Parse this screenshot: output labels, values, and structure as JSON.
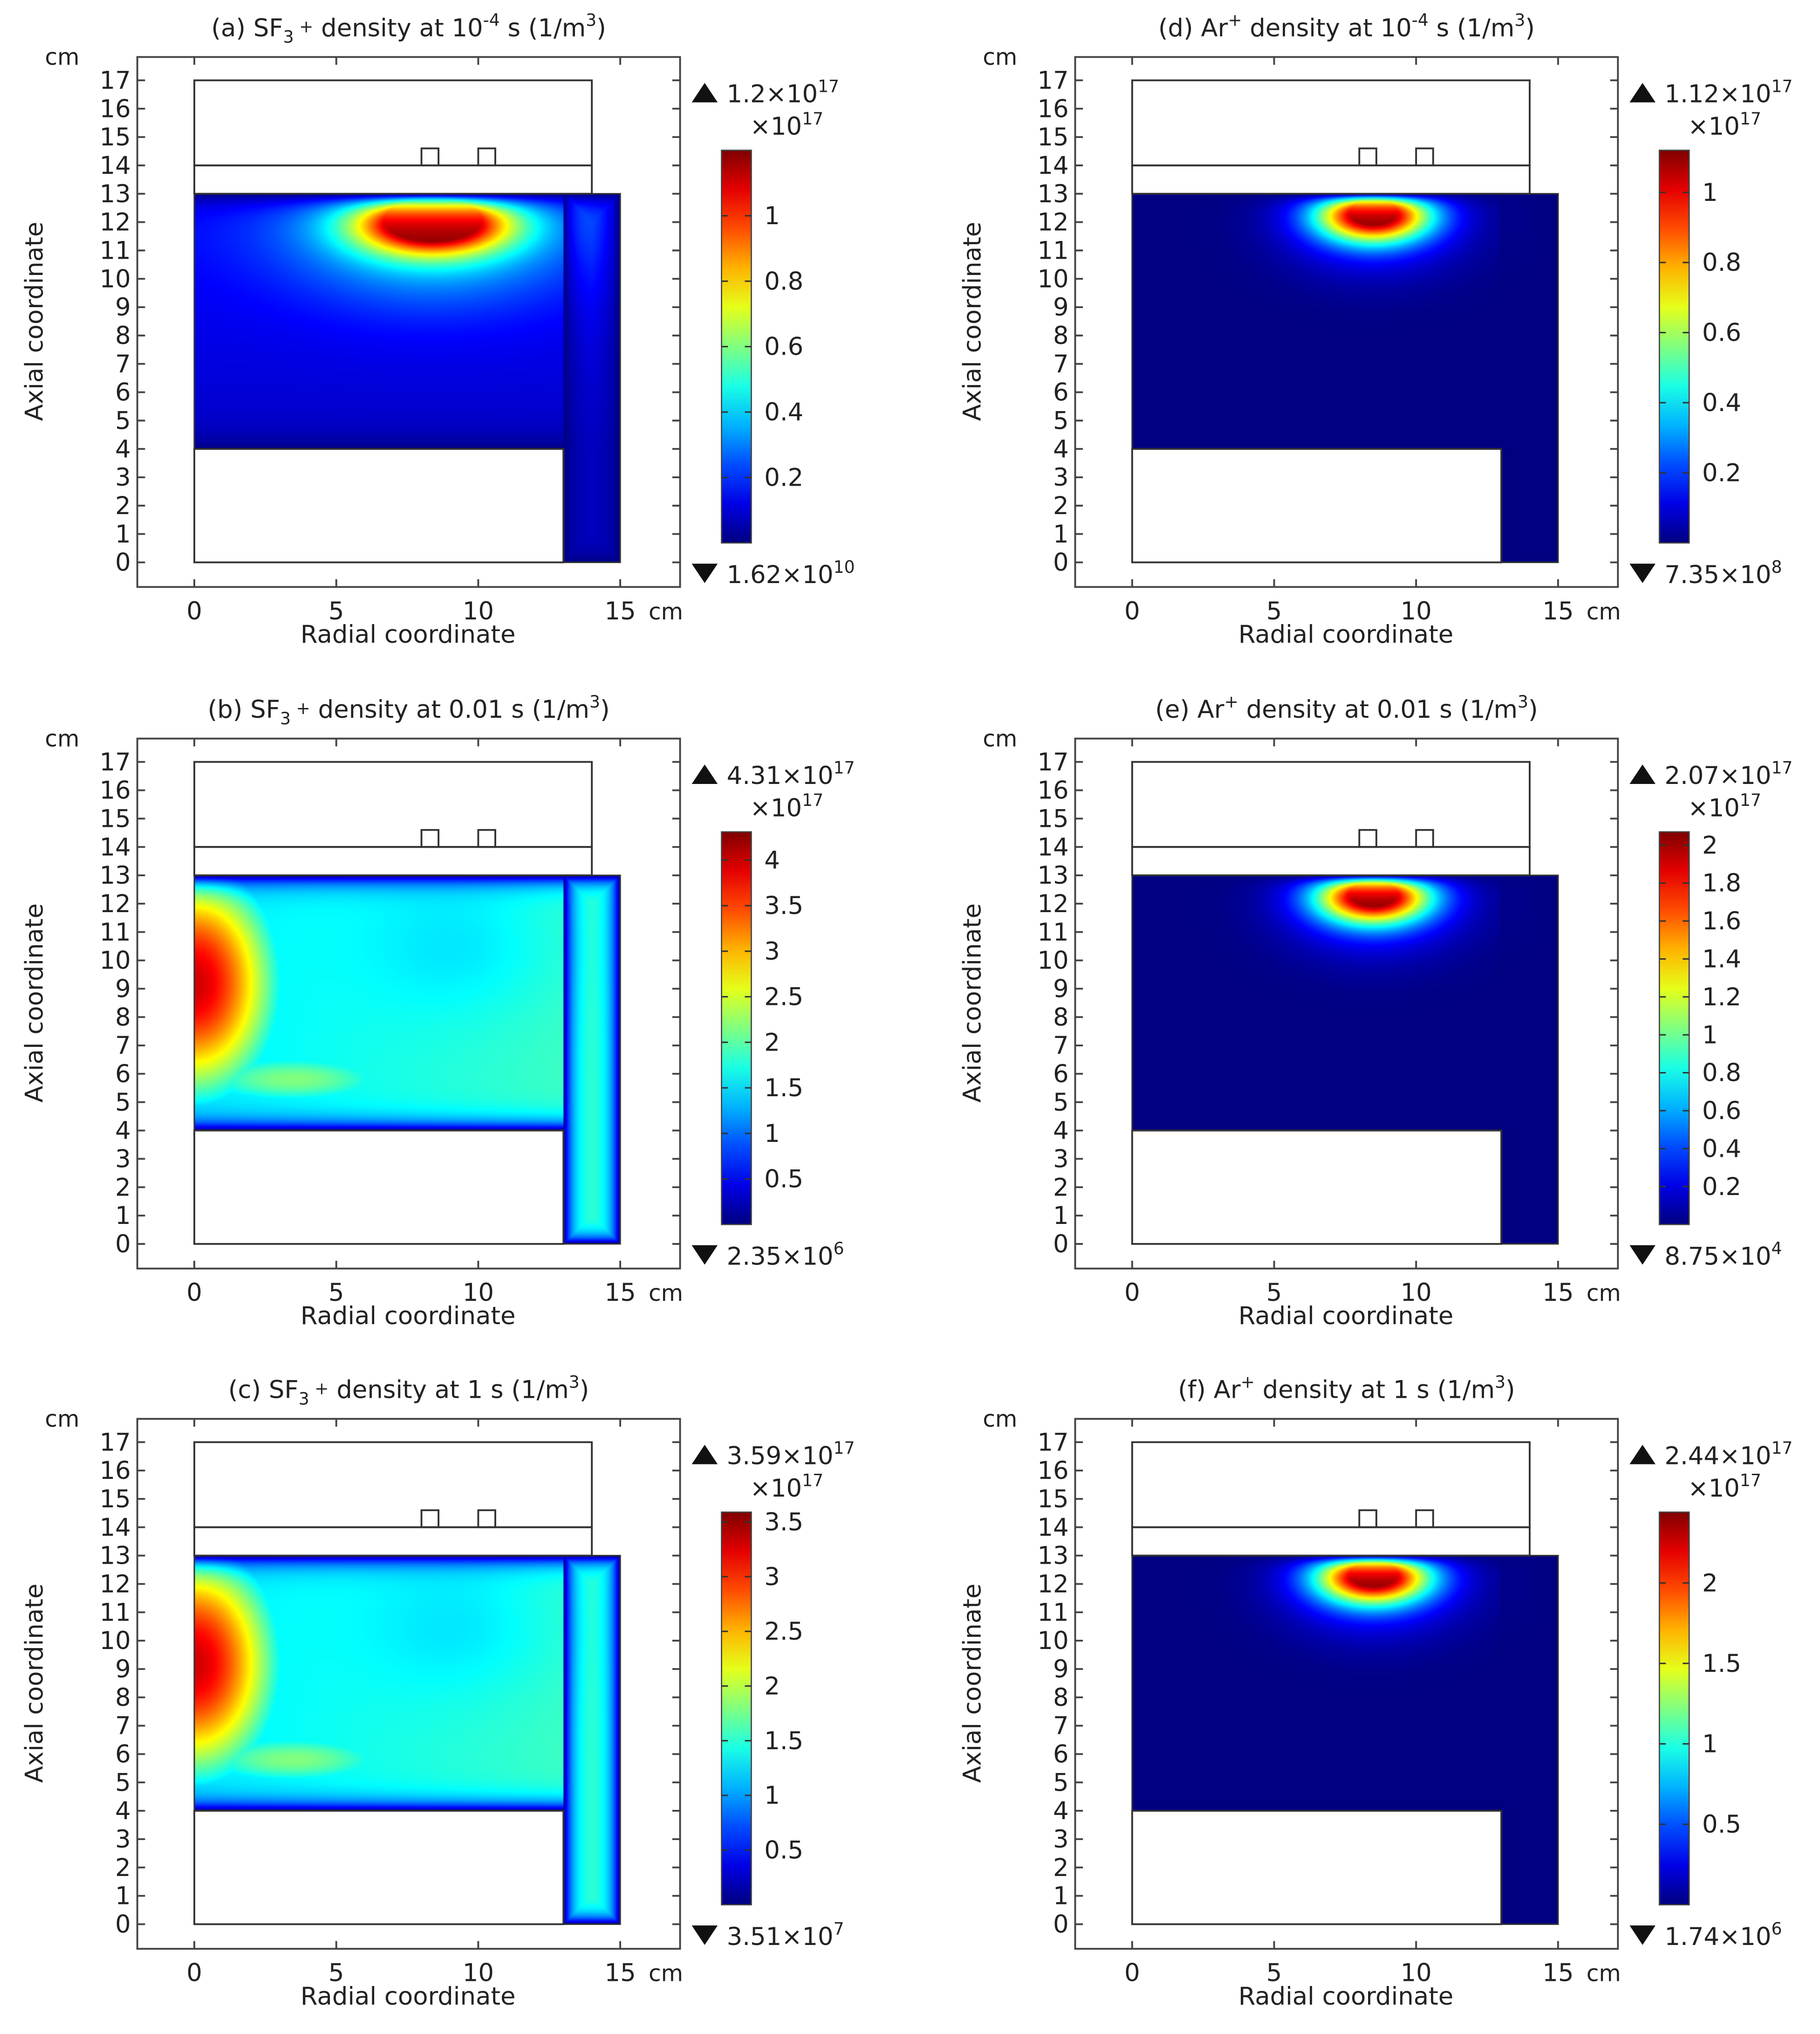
{
  "figure": {
    "unit_label": "cm",
    "axes": {
      "xlabel": "Radial coordinate",
      "ylabel": "Axial coordinate",
      "x_unit": "cm",
      "y_unit": "cm",
      "xlim": [
        -2,
        17
      ],
      "ylim": [
        -0.9,
        18.1
      ],
      "xticks": [
        0,
        5,
        10,
        15
      ],
      "yticks": [
        0,
        1,
        2,
        3,
        4,
        5,
        6,
        7,
        8,
        9,
        10,
        11,
        12,
        13,
        14,
        15,
        16,
        17
      ]
    },
    "geometry": {
      "chamber_top": [
        0,
        17,
        14,
        14
      ],
      "window": [
        0,
        14,
        14,
        13
      ],
      "coil_1": [
        8.0,
        14.6,
        8.6,
        14
      ],
      "coil_2": [
        10.0,
        14.6,
        10.6,
        14
      ],
      "plasma_region": [
        [
          0,
          13
        ],
        [
          15,
          13
        ],
        [
          15,
          0
        ],
        [
          13,
          0
        ],
        [
          13,
          4
        ],
        [
          0,
          4
        ]
      ],
      "lower_block": [
        0,
        4,
        13,
        0
      ]
    },
    "colormap": "jet"
  },
  "chart_data": [
    {
      "id": "a",
      "type": "heatmap",
      "title_prefix": "(a) SF",
      "title_sub": "3",
      "title_sup": " +",
      "title_mid": " density at 10",
      "title_exp": "-4",
      "title_suffix": " s (1/m",
      "title_unit_exp": "3",
      "title_end": ")",
      "species": "SF3+",
      "time": "1e-4 s",
      "distribution": "coil-peak",
      "peak_center": [
        8.4,
        12.0
      ],
      "colorbar": {
        "max_mant": "1.2",
        "max_exp": "17",
        "min_mant": "1.62",
        "min_exp": "10",
        "scale_mant": "×10",
        "scale_exp": "17",
        "range": [
          0,
          1.2
        ],
        "ticks": [
          0.2,
          0.4,
          0.6,
          0.8,
          1
        ],
        "tick_labels": [
          "0.2",
          "0.4",
          "0.6",
          "0.8",
          "1"
        ]
      }
    },
    {
      "id": "b",
      "type": "heatmap",
      "title_prefix": "(b) SF",
      "title_sub": "3",
      "title_sup": " +",
      "title_mid": " density at 0.01 s",
      "title_exp": "",
      "title_suffix": " (1/m",
      "title_unit_exp": "3",
      "title_end": ")",
      "species": "SF3+",
      "time": "0.01 s",
      "distribution": "axis-peak",
      "peak_center": [
        0.5,
        9.0
      ],
      "colorbar": {
        "max_mant": "4.31",
        "max_exp": "17",
        "min_mant": "2.35",
        "min_exp": "6",
        "scale_mant": "×10",
        "scale_exp": "17",
        "range": [
          0,
          4.31
        ],
        "ticks": [
          0.5,
          1,
          1.5,
          2,
          2.5,
          3,
          3.5,
          4
        ],
        "tick_labels": [
          "0.5",
          "1",
          "1.5",
          "2",
          "2.5",
          "3",
          "3.5",
          "4"
        ]
      }
    },
    {
      "id": "c",
      "type": "heatmap",
      "title_prefix": "(c) SF",
      "title_sub": "3",
      "title_sup": " +",
      "title_mid": " density at 1 s",
      "title_exp": "",
      "title_suffix": " (1/m",
      "title_unit_exp": "3",
      "title_end": ")",
      "species": "SF3+",
      "time": "1 s",
      "distribution": "axis-peak",
      "peak_center": [
        0.5,
        9.0
      ],
      "colorbar": {
        "max_mant": "3.59",
        "max_exp": "17",
        "min_mant": "3.51",
        "min_exp": "7",
        "scale_mant": "×10",
        "scale_exp": "17",
        "range": [
          0,
          3.59
        ],
        "ticks": [
          0.5,
          1,
          1.5,
          2,
          2.5,
          3,
          3.5
        ],
        "tick_labels": [
          "0.5",
          "1",
          "1.5",
          "2",
          "2.5",
          "3",
          "3.5"
        ]
      }
    },
    {
      "id": "d",
      "type": "heatmap",
      "title_prefix": "(d) Ar",
      "title_sub": "",
      "title_sup": "+",
      "title_mid": " density at 10",
      "title_exp": "-4",
      "title_suffix": " s (1/m",
      "title_unit_exp": "3",
      "title_end": ")",
      "species": "Ar+",
      "time": "1e-4 s",
      "distribution": "coil-peak-tight",
      "peak_center": [
        8.5,
        12.3
      ],
      "colorbar": {
        "max_mant": "1.12",
        "max_exp": "17",
        "min_mant": "7.35",
        "min_exp": "8",
        "scale_mant": "×10",
        "scale_exp": "17",
        "range": [
          0,
          1.12
        ],
        "ticks": [
          0.2,
          0.4,
          0.6,
          0.8,
          1
        ],
        "tick_labels": [
          "0.2",
          "0.4",
          "0.6",
          "0.8",
          "1"
        ]
      }
    },
    {
      "id": "e",
      "type": "heatmap",
      "title_prefix": "(e) Ar",
      "title_sub": "",
      "title_sup": "+",
      "title_mid": " density at 0.01 s",
      "title_exp": "",
      "title_suffix": " (1/m",
      "title_unit_exp": "3",
      "title_end": ")",
      "species": "Ar+",
      "time": "0.01 s",
      "distribution": "coil-peak-tight",
      "peak_center": [
        8.5,
        12.3
      ],
      "colorbar": {
        "max_mant": "2.07",
        "max_exp": "17",
        "min_mant": "8.75",
        "min_exp": "4",
        "scale_mant": "×10",
        "scale_exp": "17",
        "range": [
          0,
          2.07
        ],
        "ticks": [
          0.2,
          0.4,
          0.6,
          0.8,
          1,
          1.2,
          1.4,
          1.6,
          1.8,
          2
        ],
        "tick_labels": [
          "0.2",
          "0.4",
          "0.6",
          "0.8",
          "1",
          "1.2",
          "1.4",
          "1.6",
          "1.8",
          "2"
        ]
      }
    },
    {
      "id": "f",
      "type": "heatmap",
      "title_prefix": "(f) Ar",
      "title_sub": "",
      "title_sup": "+",
      "title_mid": " density at 1 s",
      "title_exp": "",
      "title_suffix": " (1/m",
      "title_unit_exp": "3",
      "title_end": ")",
      "species": "Ar+",
      "time": "1 s",
      "distribution": "coil-peak-tight",
      "peak_center": [
        8.5,
        12.3
      ],
      "colorbar": {
        "max_mant": "2.44",
        "max_exp": "17",
        "min_mant": "1.74",
        "min_exp": "6",
        "scale_mant": "×10",
        "scale_exp": "17",
        "range": [
          0,
          2.44
        ],
        "ticks": [
          0.5,
          1,
          1.5,
          2
        ],
        "tick_labels": [
          "0.5",
          "1",
          "1.5",
          "2"
        ]
      }
    }
  ]
}
